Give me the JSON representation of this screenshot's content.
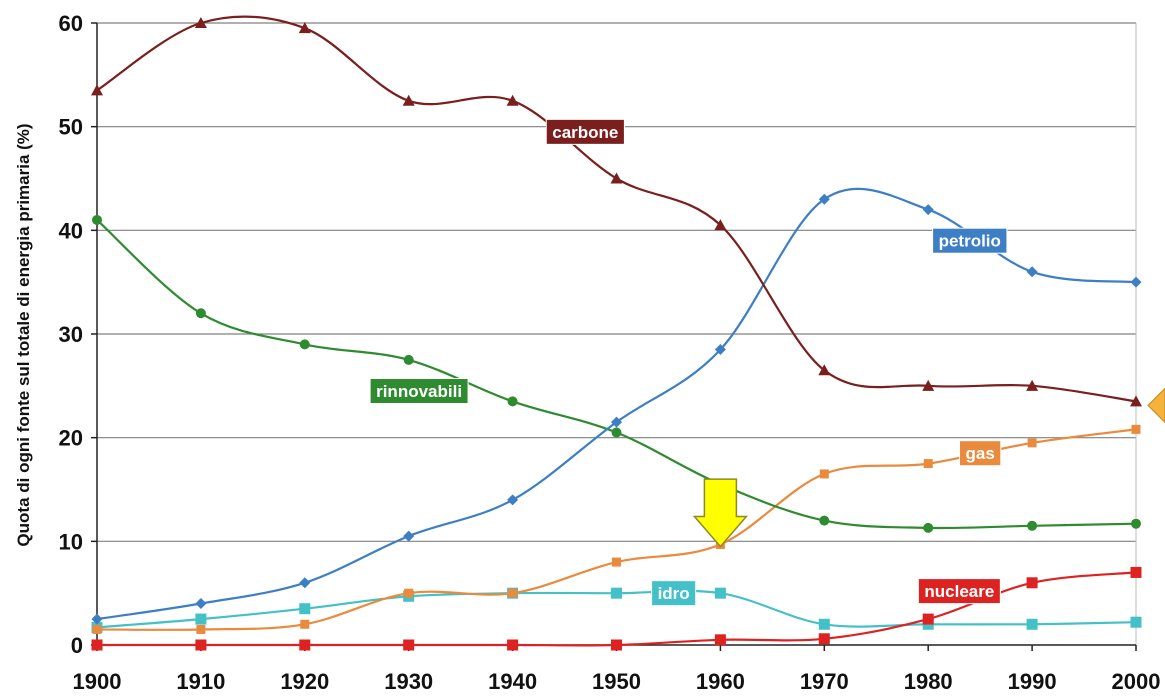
{
  "chart_data": {
    "type": "line",
    "ylabel": "Quota di ogni fonte sul totale di energia primaria (%)",
    "xlabel": "",
    "ylim": [
      0,
      60
    ],
    "yticks": [
      "0",
      "10",
      "20",
      "30",
      "40",
      "50",
      "60"
    ],
    "xticks": [
      "1900",
      "1910",
      "1920",
      "1930",
      "1940",
      "1950",
      "1960",
      "1970",
      "1980",
      "1990",
      "2000"
    ],
    "grid": true,
    "colors": {
      "carbone": "#7a1e1e",
      "petrolio": "#3d7fc4",
      "rinnovabili": "#2f8b2f",
      "gas": "#e98a3c",
      "idro": "#43c0c8",
      "nucleare": "#dd2222",
      "arrow": "#ffff00",
      "grid": "#808080"
    },
    "series": [
      {
        "name": "carbone",
        "marker": "triangle",
        "x": [
          1900,
          1910,
          1920,
          1930,
          1940,
          1950,
          1960,
          1970,
          1980,
          1990,
          2000
        ],
        "values": [
          53.5,
          60,
          59.5,
          52.5,
          52.5,
          45,
          40.5,
          26.5,
          25,
          25,
          23.5
        ]
      },
      {
        "name": "petrolio",
        "marker": "diamond",
        "x": [
          1900,
          1910,
          1920,
          1930,
          1940,
          1950,
          1960,
          1970,
          1980,
          1990,
          2000
        ],
        "values": [
          2.5,
          4,
          6,
          10.5,
          14,
          21.5,
          28.5,
          43,
          42,
          36,
          35
        ]
      },
      {
        "name": "rinnovabili",
        "marker": "circle",
        "x": [
          1900,
          1910,
          1920,
          1930,
          1940,
          1950,
          1960,
          1970,
          1980,
          1990,
          2000
        ],
        "values": [
          41,
          32,
          29,
          27.5,
          23.5,
          20.5,
          15.5,
          12,
          11.3,
          11.5,
          11.7
        ]
      },
      {
        "name": "gas",
        "marker": "square",
        "x": [
          1900,
          1910,
          1920,
          1930,
          1940,
          1950,
          1960,
          1970,
          1980,
          1990,
          2000
        ],
        "values": [
          1.5,
          1.5,
          2,
          5,
          5,
          8,
          9.7,
          16.5,
          17.5,
          19.5,
          20.8
        ]
      },
      {
        "name": "idro",
        "marker": "square",
        "x": [
          1900,
          1910,
          1920,
          1930,
          1940,
          1950,
          1960,
          1970,
          1980,
          1990,
          2000
        ],
        "values": [
          1.7,
          2.5,
          3.5,
          4.7,
          5,
          5,
          5,
          2,
          2,
          2,
          2.2
        ]
      },
      {
        "name": "nucleare",
        "marker": "square",
        "x": [
          1900,
          1910,
          1920,
          1930,
          1940,
          1950,
          1960,
          1970,
          1980,
          1990,
          2000
        ],
        "values": [
          0,
          0,
          0,
          0,
          0,
          0,
          0.5,
          0.6,
          2.5,
          6,
          7
        ]
      }
    ],
    "annotations": [
      {
        "text": "carbone",
        "series": "carbone",
        "x": 1947,
        "y": 49.5
      },
      {
        "text": "petrolio",
        "series": "petrolio",
        "x": 1984,
        "y": 39
      },
      {
        "text": "rinnovabili",
        "series": "rinnovabili",
        "x": 1931,
        "y": 24.5
      },
      {
        "text": "gas",
        "series": "gas",
        "x": 1985,
        "y": 18.5
      },
      {
        "text": "idro",
        "series": "idro",
        "x": 1955.5,
        "y": 5
      },
      {
        "text": "nucleare",
        "series": "nucleare",
        "x": 1983,
        "y": 5.2
      }
    ],
    "arrow": {
      "x": 1960,
      "y_top": 16,
      "y_tip": 9.5,
      "direction": "down"
    }
  }
}
